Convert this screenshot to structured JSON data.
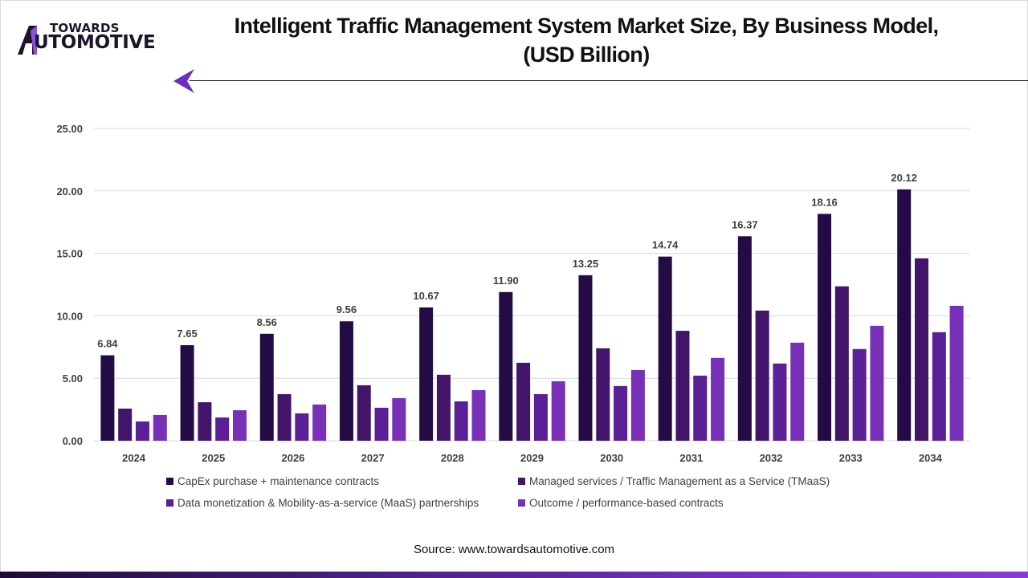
{
  "brand": {
    "line1": "TOWARDS",
    "line2": "UTOMOTIVE",
    "logo_icon": "towards-automotive-logo",
    "arrow_icon": "left-arrow-icon"
  },
  "colors": {
    "series": [
      "#250b45",
      "#42146a",
      "#5a1f94",
      "#7830b8"
    ],
    "grid": "#d9d9d9",
    "label": "#404040"
  },
  "source": "Source: www.towardsautomotive.com",
  "chart_data": {
    "type": "bar",
    "title": "Intelligent Traffic Management System Market Size, By Business Model, (USD Billion)",
    "title_lines": [
      "Intelligent Traffic Management System Market Size, By Business Model,",
      "(USD Billion)"
    ],
    "xlabel": "",
    "ylabel": "",
    "ylim": [
      0,
      25
    ],
    "yticks": [
      "0.00",
      "5.00",
      "10.00",
      "15.00",
      "20.00",
      "25.00"
    ],
    "grid": true,
    "legend_position": "bottom",
    "categories": [
      "2024",
      "2025",
      "2026",
      "2027",
      "2028",
      "2029",
      "2030",
      "2031",
      "2032",
      "2033",
      "2034"
    ],
    "series": [
      {
        "name": "CapEx purchase + maintenance contracts",
        "values": [
          6.84,
          7.65,
          8.56,
          9.56,
          10.67,
          11.9,
          13.25,
          14.74,
          16.37,
          18.16,
          20.12
        ],
        "labels": [
          "6.84",
          "7.65",
          "8.56",
          "9.56",
          "10.67",
          "11.90",
          "13.25",
          "14.74",
          "16.37",
          "18.16",
          "20.12"
        ]
      },
      {
        "name": "Managed services / Traffic Management as a Service (TMaaS)",
        "values": [
          2.57,
          3.08,
          3.73,
          4.44,
          5.28,
          6.24,
          7.4,
          8.8,
          10.42,
          12.36,
          14.6
        ]
      },
      {
        "name": "Data monetization & Mobility-as-a-service (MaaS) partnerships",
        "values": [
          1.54,
          1.86,
          2.19,
          2.64,
          3.15,
          3.73,
          4.38,
          5.21,
          6.18,
          7.34,
          8.69
        ]
      },
      {
        "name": "Outcome / performance-based contracts",
        "values": [
          2.06,
          2.44,
          2.9,
          3.41,
          4.05,
          4.76,
          5.66,
          6.63,
          7.85,
          9.2,
          10.8
        ]
      }
    ]
  }
}
